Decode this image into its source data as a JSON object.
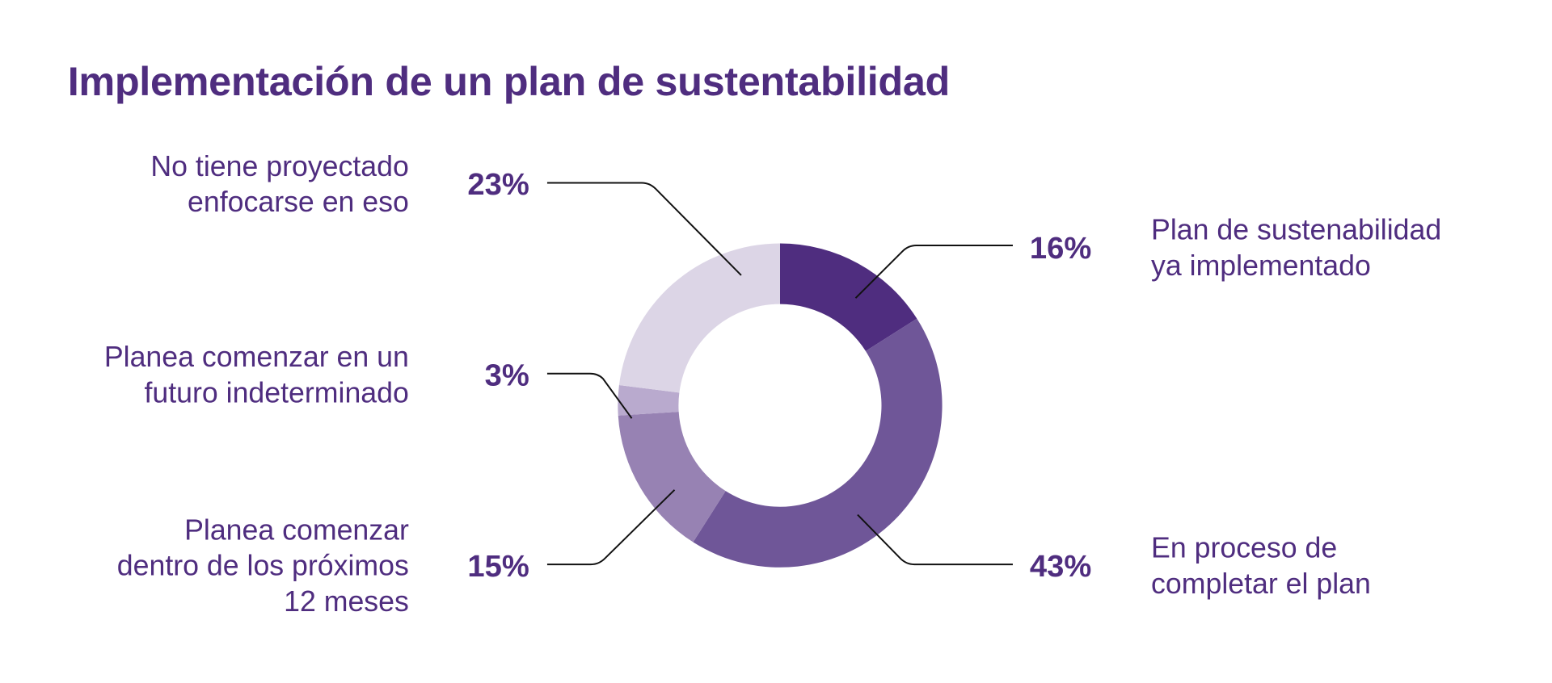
{
  "title": "Implementación de un plan de sustentabilidad",
  "colors": {
    "text": "#4f2d7f",
    "leader_line": "#111111"
  },
  "segments": [
    {
      "label": "Plan de sustenabilidad\nya implementado",
      "value": 16,
      "pct": "16%",
      "color": "#4f2d7f"
    },
    {
      "label": "En proceso de\ncompletar el plan",
      "value": 43,
      "pct": "43%",
      "color": "#6f5698"
    },
    {
      "label": "Planea comenzar\ndentro de los próximos\n12 meses",
      "value": 15,
      "pct": "15%",
      "color": "#9782b3"
    },
    {
      "label": "Planea comenzar en un\nfuturo indeterminado",
      "value": 3,
      "pct": "3%",
      "color": "#b9aace"
    },
    {
      "label": "No tiene proyectado\nenfocarse en eso",
      "value": 23,
      "pct": "23%",
      "color": "#dcd5e6"
    }
  ],
  "chart_data": {
    "type": "pie",
    "subtype": "donut",
    "title": "Implementación de un plan de sustentabilidad",
    "categories": [
      "Plan de sustenabilidad ya implementado",
      "En proceso de completar el plan",
      "Planea comenzar dentro de los próximos 12 meses",
      "Planea comenzar en un futuro indeterminado",
      "No tiene proyectado enfocarse en eso"
    ],
    "values": [
      16,
      43,
      15,
      3,
      23
    ],
    "unit": "%",
    "colors": [
      "#4f2d7f",
      "#6f5698",
      "#9782b3",
      "#b9aace",
      "#dcd5e6"
    ],
    "start_angle": "12 o'clock",
    "direction": "clockwise",
    "legend": "none (direct labels with leader lines)"
  }
}
